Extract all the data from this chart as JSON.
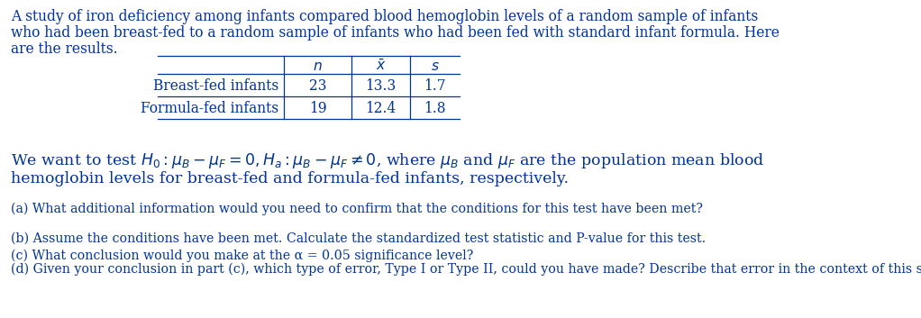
{
  "bg_color": "#ffffff",
  "text_color": "#003399",
  "intro_lines": [
    "A study of iron deficiency among infants compared blood hemoglobin levels of a random sample of infants",
    "who had been breast-fed to a random sample of infants who had been fed with standard infant formula. Here",
    "are the results."
  ],
  "table_rows": [
    [
      "Breast-fed infants",
      "23",
      "13.3",
      "1.7"
    ],
    [
      "Formula-fed infants",
      "19",
      "12.4",
      "1.8"
    ]
  ],
  "questions": [
    "(a) What additional information would you need to confirm that the conditions for this test have been met?",
    "(b) Assume the conditions have been met. Calculate the standardized test statistic and P-value for this test.",
    "(c) What conclusion would you make at the α = 0.05 significance level?",
    "(d) Given your conclusion in part (c), which type of error, Type I or Type II, could you have made? Describe that error in the context of this study."
  ],
  "intro_fontsize": 11.2,
  "table_fontsize": 11.2,
  "hyp_fontsize": 12.5,
  "q_fontsize": 10.2
}
